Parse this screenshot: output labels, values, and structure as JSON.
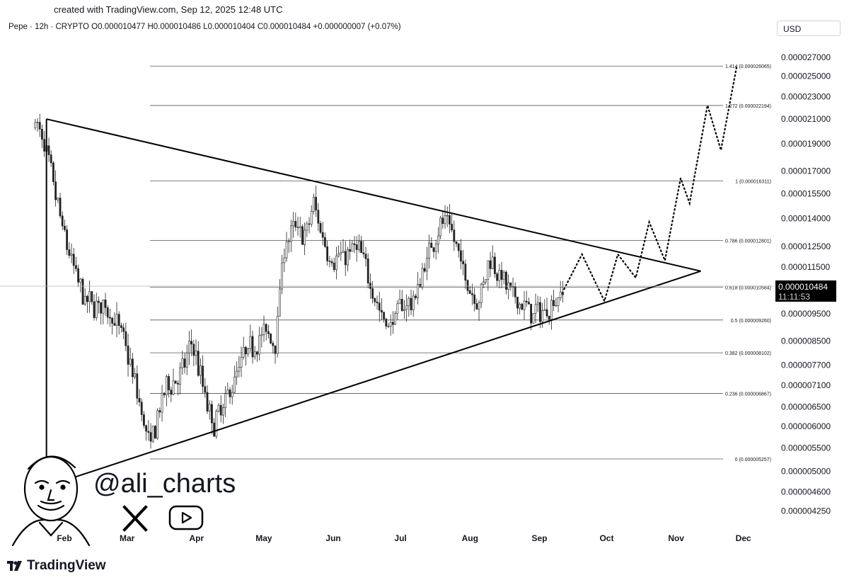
{
  "header": {
    "caption": "created with TradingView.com, Sep 12, 2025 12:48 UTC",
    "legend": "Pepe · 12h · CRYPTO  O0.000010477  H0.000010486  L0.000010404  C0.000010484  +0.000000007 (+0.07%)",
    "currency": "USD"
  },
  "watermark": {
    "handle": "@ali_charts",
    "icons": [
      "cartoon-face-logo",
      "x-logo-icon",
      "youtube-icon"
    ]
  },
  "brand": "TradingView",
  "price_tag": {
    "price": "0.000010484",
    "countdown": "11:11:53"
  },
  "colors": {
    "candle": "#222222",
    "line": "#000000",
    "fib": "#555555"
  },
  "chart_data": {
    "type": "candlestick",
    "symbol": "Pepe",
    "interval": "12h",
    "x_labels": [
      "Feb",
      "Mar",
      "Apr",
      "May",
      "Jun",
      "Jul",
      "Aug",
      "Sep",
      "Oct",
      "Nov",
      "Dec"
    ],
    "y_ticks": [
      "0.000027000",
      "0.000025000",
      "0.000023000",
      "0.000021000",
      "0.000019000",
      "0.000017000",
      "0.000015500",
      "0.000014000",
      "0.000012500",
      "0.000011500",
      "0.000009500",
      "0.000008500",
      "0.000007700",
      "0.000007100",
      "0.000006500",
      "0.000006000",
      "0.000005500",
      "0.000005000",
      "0.000004600",
      "0.000004250"
    ],
    "y_scale": "log",
    "price_path": [
      [
        "2025-01-19",
        2.1e-05
      ],
      [
        "2025-01-25",
        1.75e-05
      ],
      [
        "2025-02-01",
        1.3e-05
      ],
      [
        "2025-02-05",
        1.15e-05
      ],
      [
        "2025-02-10",
        1e-05
      ],
      [
        "2025-02-20",
        9.7e-06
      ],
      [
        "2025-02-27",
        8.7e-06
      ],
      [
        "2025-03-05",
        7e-06
      ],
      [
        "2025-03-11",
        5.5e-06
      ],
      [
        "2025-03-18",
        7e-06
      ],
      [
        "2025-03-25",
        7.4e-06
      ],
      [
        "2025-03-30",
        8.5e-06
      ],
      [
        "2025-04-04",
        7e-06
      ],
      [
        "2025-04-08",
        6e-06
      ],
      [
        "2025-04-13",
        6.5e-06
      ],
      [
        "2025-04-22",
        8e-06
      ],
      [
        "2025-04-28",
        8.5e-06
      ],
      [
        "2025-05-02",
        8.8e-06
      ],
      [
        "2025-05-06",
        8.4e-06
      ],
      [
        "2025-05-10",
        1.25e-05
      ],
      [
        "2025-05-15",
        1.35e-05
      ],
      [
        "2025-05-20",
        1.3e-05
      ],
      [
        "2025-05-23",
        1.5e-05
      ],
      [
        "2025-05-26",
        1.35e-05
      ],
      [
        "2025-05-31",
        1.18e-05
      ],
      [
        "2025-06-06",
        1.2e-05
      ],
      [
        "2025-06-12",
        1.25e-05
      ],
      [
        "2025-06-17",
        1.1e-05
      ],
      [
        "2025-06-22",
        9.5e-06
      ],
      [
        "2025-06-26",
        9e-06
      ],
      [
        "2025-07-01",
        9.8e-06
      ],
      [
        "2025-07-07",
        1e-05
      ],
      [
        "2025-07-13",
        1.2e-05
      ],
      [
        "2025-07-18",
        1.35e-05
      ],
      [
        "2025-07-22",
        1.4e-05
      ],
      [
        "2025-07-27",
        1.2e-05
      ],
      [
        "2025-08-01",
        1.05e-05
      ],
      [
        "2025-08-05",
        1e-05
      ],
      [
        "2025-08-10",
        1.2e-05
      ],
      [
        "2025-08-15",
        1.1e-05
      ],
      [
        "2025-08-20",
        1.02e-05
      ],
      [
        "2025-08-25",
        9.8e-06
      ],
      [
        "2025-08-30",
        9.5e-06
      ],
      [
        "2025-09-04",
        9.6e-06
      ],
      [
        "2025-09-12",
        1.05e-05
      ]
    ],
    "triangle": {
      "upper": [
        [
          "2025-01-24",
          2.1e-05
        ],
        [
          "2025-11-12",
          1.13e-05
        ]
      ],
      "lower": [
        [
          "2025-01-24",
          4.7e-06
        ],
        [
          "2025-11-12",
          1.13e-05
        ]
      ],
      "left_edge": [
        [
          "2025-01-24",
          2.1e-05
        ],
        [
          "2025-01-24",
          4.7e-06
        ]
      ]
    },
    "projection": [
      [
        "2025-09-12",
        1.05e-05
      ],
      [
        "2025-09-20",
        1.21e-05
      ],
      [
        "2025-09-30",
        1e-05
      ],
      [
        "2025-10-06",
        1.21e-05
      ],
      [
        "2025-10-14",
        1.1e-05
      ],
      [
        "2025-10-20",
        1.38e-05
      ],
      [
        "2025-10-27",
        1.18e-05
      ],
      [
        "2025-11-03",
        1.65e-05
      ],
      [
        "2025-11-07",
        1.49e-05
      ],
      [
        "2025-11-15",
        2.22e-05
      ],
      [
        "2025-11-21",
        1.85e-05
      ],
      [
        "2025-11-28",
        2.6e-05
      ]
    ],
    "fib_levels": [
      {
        "label": "0 (0.000005257)",
        "value": 5.257e-06
      },
      {
        "label": "0.236 (0.000006867)",
        "value": 6.867e-06
      },
      {
        "label": "0.382 (0.000008102)",
        "value": 8.102e-06
      },
      {
        "label": "0.5 (0.000009260)",
        "value": 9.26e-06
      },
      {
        "label": "0.618 (0.000010584)",
        "value": 1.0584e-05
      },
      {
        "label": "0.786 (0.000012801)",
        "value": 1.2801e-05
      },
      {
        "label": "1 (0.000016311)",
        "value": 1.6311e-05
      },
      {
        "label": "1.272 (0.000022194)",
        "value": 2.2194e-05
      },
      {
        "label": "1.414 (0.000026065)",
        "value": 2.6065e-05
      }
    ]
  }
}
